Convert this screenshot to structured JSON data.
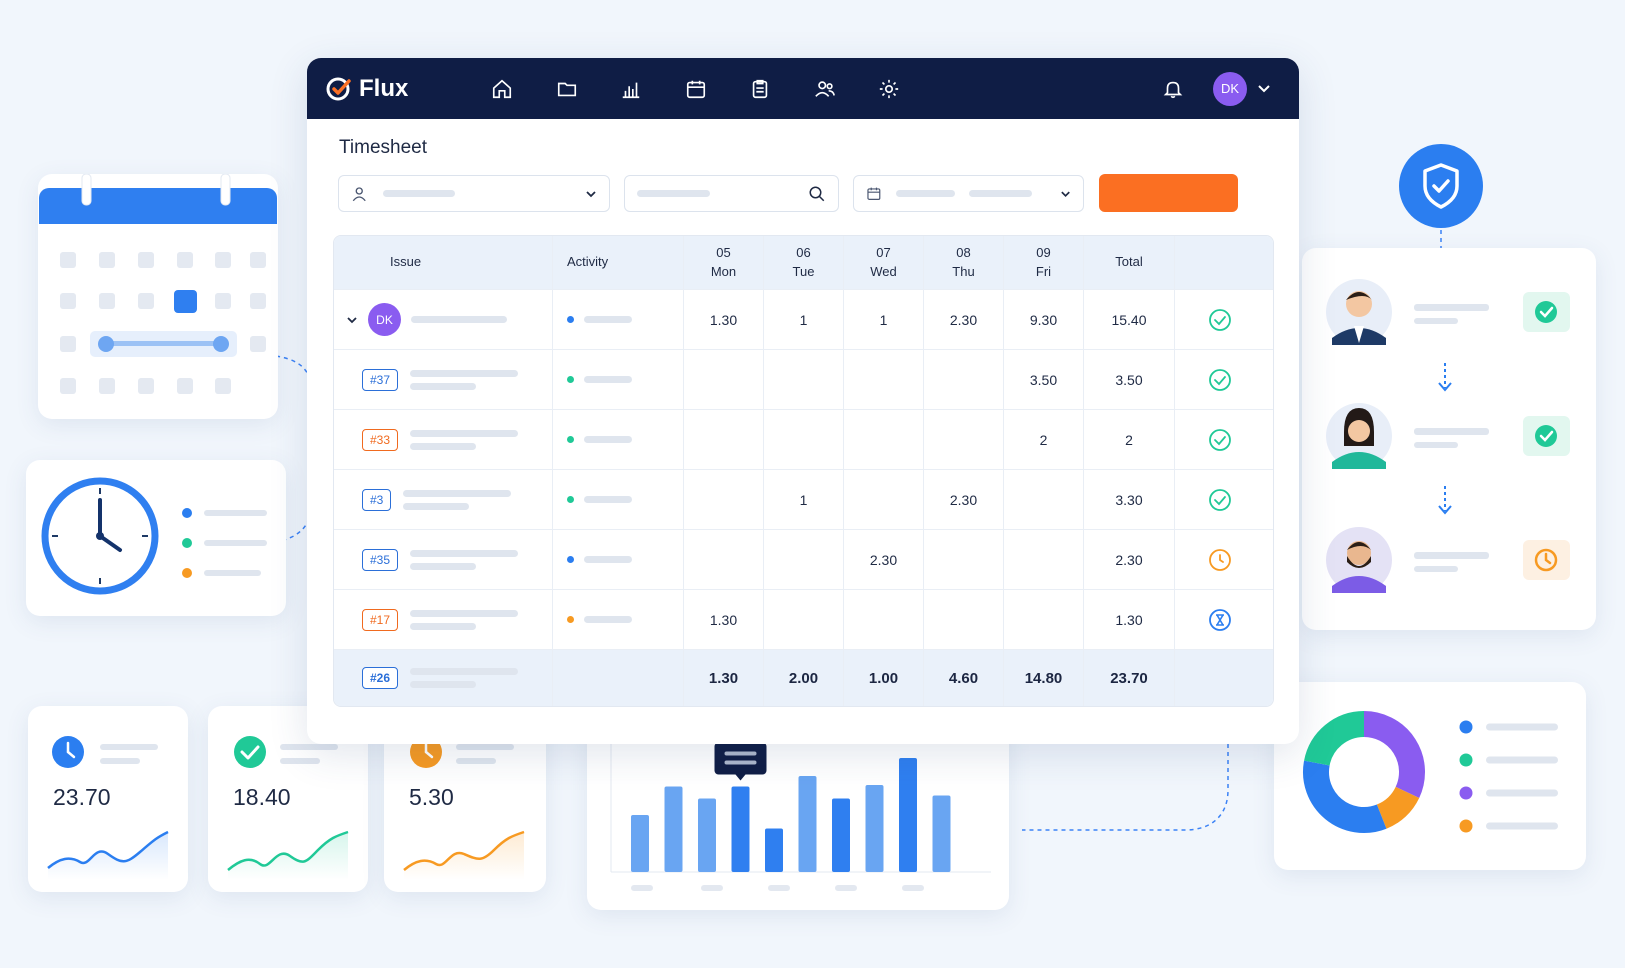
{
  "app": {
    "name": "Flux",
    "user_initials": "DK",
    "title": "Timesheet"
  },
  "nav": [
    "home-icon",
    "folder-icon",
    "chart-icon",
    "calendar-icon",
    "clipboard-icon",
    "users-icon",
    "gear-icon"
  ],
  "colors": {
    "navy": "#0f1d45",
    "accent": "#fb6f22",
    "blue": "#2b7ef0",
    "green": "#20c997",
    "purple": "#8a5cf0",
    "orange": "#f79a22"
  },
  "table": {
    "headers": {
      "issue": "Issue",
      "activity": "Activity",
      "days": [
        {
          "num": "05",
          "name": "Mon"
        },
        {
          "num": "06",
          "name": "Tue"
        },
        {
          "num": "07",
          "name": "Wed"
        },
        {
          "num": "08",
          "name": "Thu"
        },
        {
          "num": "09",
          "name": "Fri"
        }
      ],
      "total": "Total"
    },
    "parent_row": {
      "avatar": "DK",
      "activity_color": "#2b7ef0",
      "days": [
        "1.30",
        "1",
        "1",
        "2.30",
        "9.30"
      ],
      "total": "15.40",
      "status": "done"
    },
    "rows": [
      {
        "tag": "#37",
        "tag_color": "blue",
        "activity_color": "#20c997",
        "days": [
          "",
          "",
          "",
          "",
          "3.50"
        ],
        "total": "3.50",
        "status": "done"
      },
      {
        "tag": "#33",
        "tag_color": "orange",
        "activity_color": "#20c997",
        "days": [
          "",
          "",
          "",
          "",
          "2"
        ],
        "total": "2",
        "status": "done"
      },
      {
        "tag": "#3",
        "tag_color": "blue",
        "activity_color": "#20c997",
        "days": [
          "",
          "1",
          "",
          "2.30",
          ""
        ],
        "total": "3.30",
        "status": "done"
      },
      {
        "tag": "#35",
        "tag_color": "blue",
        "activity_color": "#2b7ef0",
        "days": [
          "",
          "",
          "2.30",
          "",
          ""
        ],
        "total": "2.30",
        "status": "pending"
      },
      {
        "tag": "#17",
        "tag_color": "orange",
        "activity_color": "#f79a22",
        "days": [
          "1.30",
          "",
          "",
          "",
          ""
        ],
        "total": "1.30",
        "status": "waiting"
      }
    ],
    "footer": {
      "tag": "#26",
      "days": [
        "1.30",
        "2.00",
        "1.00",
        "4.60",
        "14.80"
      ],
      "total": "23.70"
    }
  },
  "stats": [
    {
      "value": "23.70",
      "color": "#2b7ef0",
      "icon": "clock-icon"
    },
    {
      "value": "18.40",
      "color": "#20c997",
      "icon": "check-icon"
    },
    {
      "value": "5.30",
      "color": "#f79a22",
      "icon": "clock-icon"
    }
  ],
  "chart_data": {
    "type": "bar",
    "values": [
      0.38,
      0.57,
      0.49,
      0.57,
      0.29,
      0.64,
      0.49,
      0.58,
      0.76,
      0.51
    ],
    "highlighted": [
      3,
      4,
      6,
      8
    ]
  },
  "donut": {
    "segments": [
      {
        "color": "#8a5cf0",
        "value": 32
      },
      {
        "color": "#f79a22",
        "value": 12
      },
      {
        "color": "#2b7ef0",
        "value": 34
      },
      {
        "color": "#20c997",
        "value": 22
      }
    ],
    "legend_colors": [
      "#2b7ef0",
      "#20c997",
      "#8a5cf0",
      "#f79a22"
    ]
  },
  "approvals": [
    {
      "status": "approved"
    },
    {
      "status": "approved"
    },
    {
      "status": "pending"
    }
  ]
}
